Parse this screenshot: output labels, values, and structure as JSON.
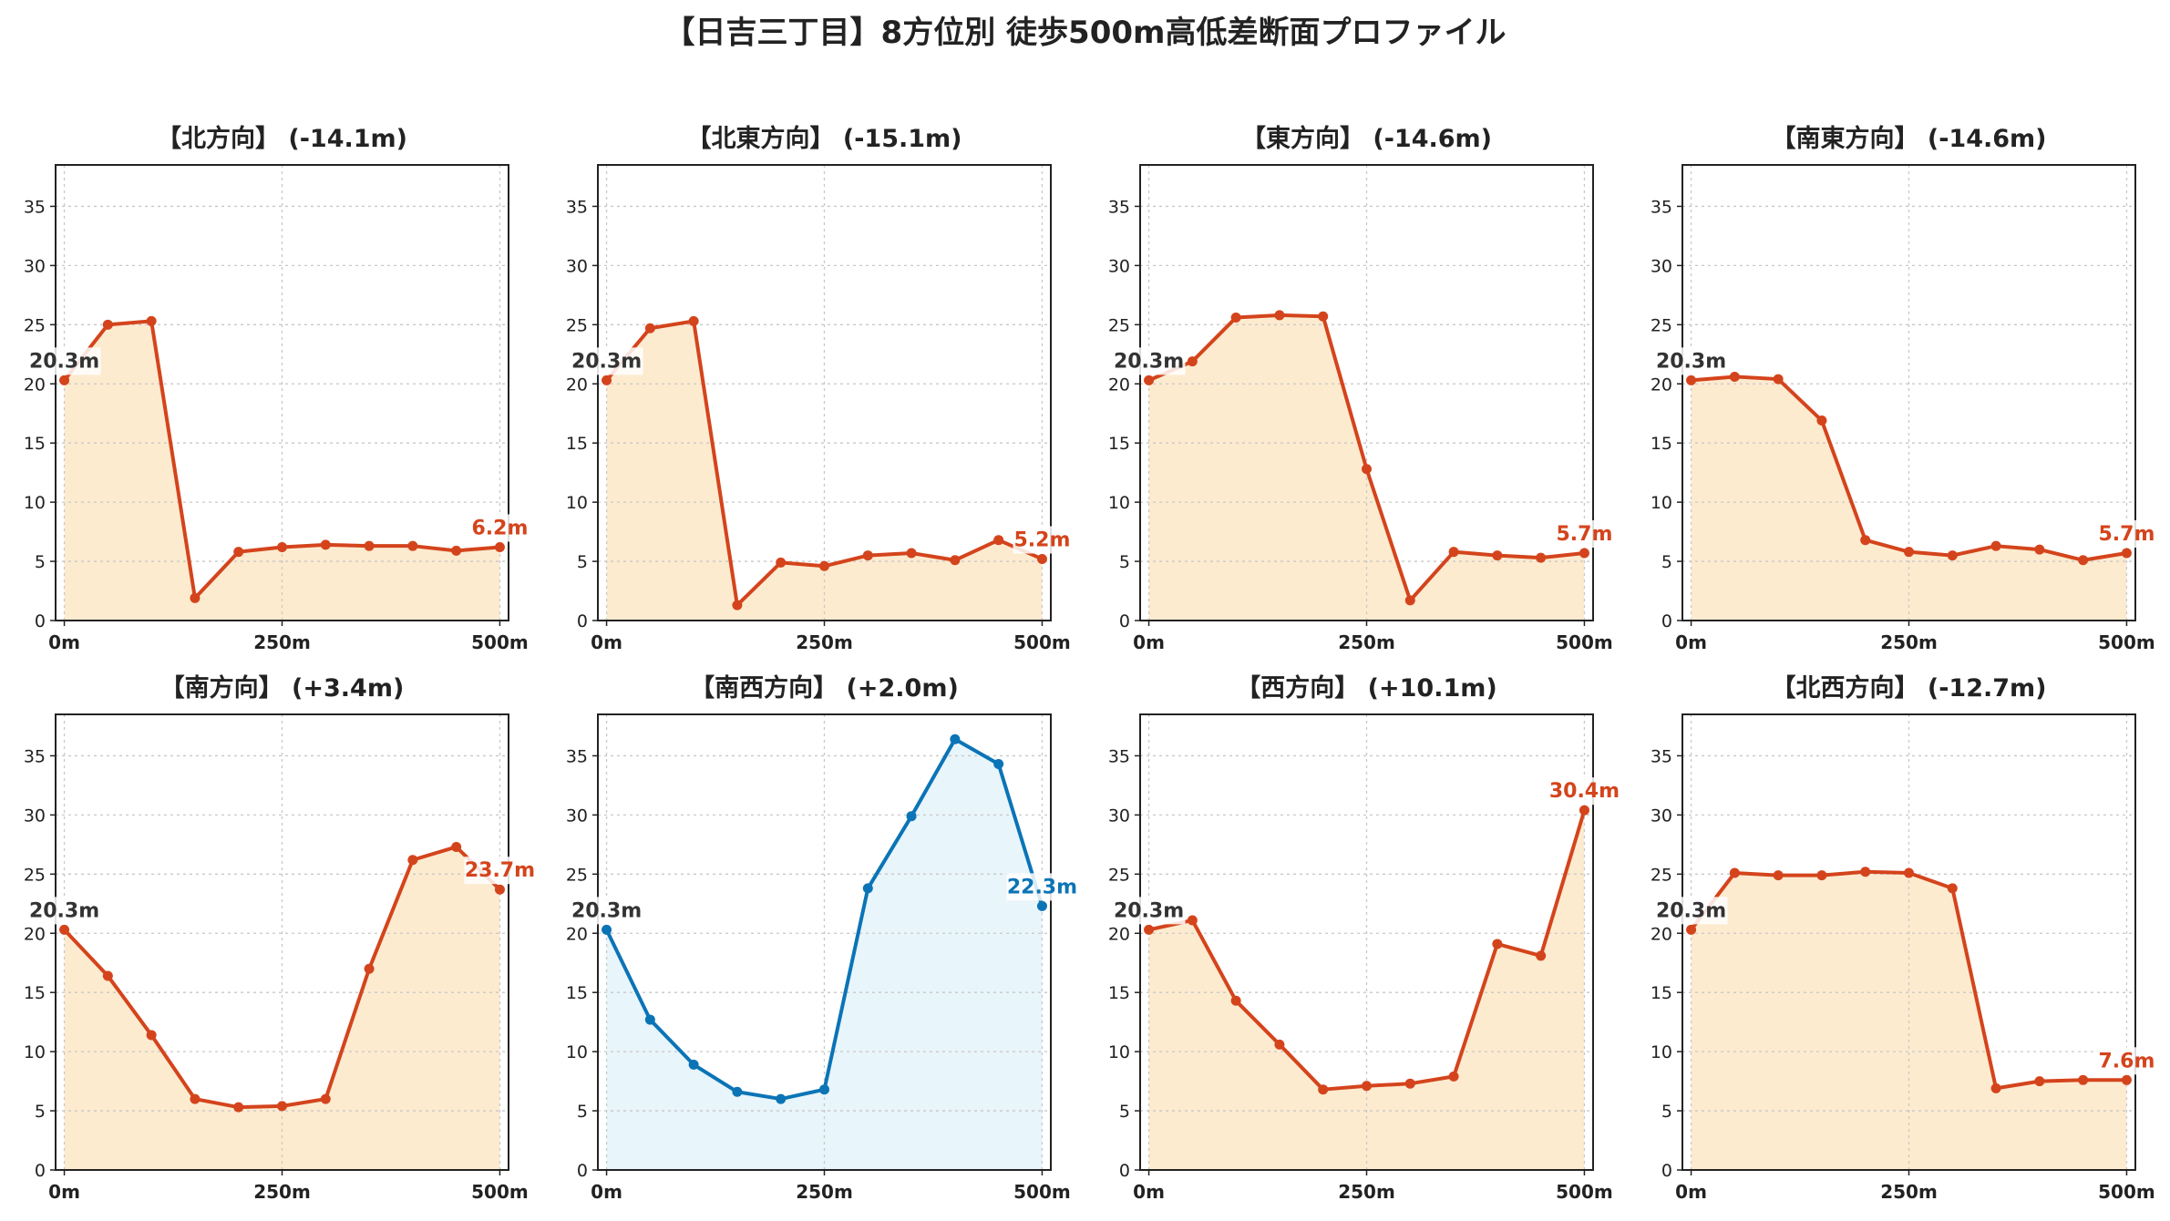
{
  "title": "【日吉三丁目】8方位別 徒歩500m高低差断面プロファイル",
  "colors": {
    "down_line": "#d4441c",
    "down_fill": "#fdebd0",
    "up_line": "#0b74b6",
    "up_fill": "#e8f5fb",
    "start_label": "#333333",
    "grid": "#c8c8c8"
  },
  "chart_data": [
    {
      "type": "line",
      "title": "【北方向】 (-14.1m)",
      "x": [
        0,
        50,
        100,
        150,
        200,
        250,
        300,
        350,
        400,
        450,
        500
      ],
      "values": [
        20.3,
        25.0,
        25.3,
        1.9,
        5.8,
        6.2,
        6.4,
        6.3,
        6.3,
        5.9,
        6.2
      ],
      "start_label": "20.3m",
      "end_label": "6.2m",
      "xticks": [
        "0m",
        "250m",
        "500m"
      ],
      "yticks": [
        "0",
        "5",
        "10",
        "15",
        "20",
        "25",
        "30",
        "35"
      ],
      "ylim": [
        0,
        38.5
      ],
      "xlim": [
        -10,
        510
      ],
      "style": "down",
      "grid": true
    },
    {
      "type": "line",
      "title": "【北東方向】 (-15.1m)",
      "x": [
        0,
        50,
        100,
        150,
        200,
        250,
        300,
        350,
        400,
        450,
        500
      ],
      "values": [
        20.3,
        24.7,
        25.3,
        1.3,
        4.9,
        4.6,
        5.5,
        5.7,
        5.1,
        6.8,
        5.2
      ],
      "start_label": "20.3m",
      "end_label": "5.2m",
      "xticks": [
        "0m",
        "250m",
        "500m"
      ],
      "yticks": [
        "0",
        "5",
        "10",
        "15",
        "20",
        "25",
        "30",
        "35"
      ],
      "ylim": [
        0,
        38.5
      ],
      "xlim": [
        -10,
        510
      ],
      "style": "down",
      "grid": true
    },
    {
      "type": "line",
      "title": "【東方向】 (-14.6m)",
      "x": [
        0,
        50,
        100,
        150,
        200,
        250,
        300,
        350,
        400,
        450,
        500
      ],
      "values": [
        20.3,
        21.9,
        25.6,
        25.8,
        25.7,
        12.8,
        1.7,
        5.8,
        5.5,
        5.3,
        5.7
      ],
      "start_label": "20.3m",
      "end_label": "5.7m",
      "xticks": [
        "0m",
        "250m",
        "500m"
      ],
      "yticks": [
        "0",
        "5",
        "10",
        "15",
        "20",
        "25",
        "30",
        "35"
      ],
      "ylim": [
        0,
        38.5
      ],
      "xlim": [
        -10,
        510
      ],
      "style": "down",
      "grid": true
    },
    {
      "type": "line",
      "title": "【南東方向】 (-14.6m)",
      "x": [
        0,
        50,
        100,
        150,
        200,
        250,
        300,
        350,
        400,
        450,
        500
      ],
      "values": [
        20.3,
        20.6,
        20.4,
        16.9,
        6.8,
        5.8,
        5.5,
        6.3,
        6.0,
        5.1,
        5.7
      ],
      "start_label": "20.3m",
      "end_label": "5.7m",
      "xticks": [
        "0m",
        "250m",
        "500m"
      ],
      "yticks": [
        "0",
        "5",
        "10",
        "15",
        "20",
        "25",
        "30",
        "35"
      ],
      "ylim": [
        0,
        38.5
      ],
      "xlim": [
        -10,
        510
      ],
      "style": "down",
      "grid": true
    },
    {
      "type": "line",
      "title": "【南方向】 (+3.4m)",
      "x": [
        0,
        50,
        100,
        150,
        200,
        250,
        300,
        350,
        400,
        450,
        500
      ],
      "values": [
        20.3,
        16.4,
        11.4,
        6.0,
        5.3,
        5.4,
        6.0,
        17.0,
        26.2,
        27.3,
        23.7
      ],
      "start_label": "20.3m",
      "end_label": "23.7m",
      "xticks": [
        "0m",
        "250m",
        "500m"
      ],
      "yticks": [
        "0",
        "5",
        "10",
        "15",
        "20",
        "25",
        "30",
        "35"
      ],
      "ylim": [
        0,
        38.5
      ],
      "xlim": [
        -10,
        510
      ],
      "style": "down",
      "grid": true
    },
    {
      "type": "line",
      "title": "【南西方向】 (+2.0m)",
      "x": [
        0,
        50,
        100,
        150,
        200,
        250,
        300,
        350,
        400,
        450,
        500
      ],
      "values": [
        20.3,
        12.7,
        8.9,
        6.6,
        6.0,
        6.8,
        23.8,
        29.9,
        36.4,
        34.3,
        22.3
      ],
      "start_label": "20.3m",
      "end_label": "22.3m",
      "xticks": [
        "0m",
        "250m",
        "500m"
      ],
      "yticks": [
        "0",
        "5",
        "10",
        "15",
        "20",
        "25",
        "30",
        "35"
      ],
      "ylim": [
        0,
        38.5
      ],
      "xlim": [
        -10,
        510
      ],
      "style": "up",
      "grid": true
    },
    {
      "type": "line",
      "title": "【西方向】 (+10.1m)",
      "x": [
        0,
        50,
        100,
        150,
        200,
        250,
        300,
        350,
        400,
        450,
        500
      ],
      "values": [
        20.3,
        21.1,
        14.3,
        10.6,
        6.8,
        7.1,
        7.3,
        7.9,
        19.1,
        18.1,
        30.4
      ],
      "start_label": "20.3m",
      "end_label": "30.4m",
      "xticks": [
        "0m",
        "250m",
        "500m"
      ],
      "yticks": [
        "0",
        "5",
        "10",
        "15",
        "20",
        "25",
        "30",
        "35"
      ],
      "ylim": [
        0,
        38.5
      ],
      "xlim": [
        -10,
        510
      ],
      "style": "down",
      "grid": true
    },
    {
      "type": "line",
      "title": "【北西方向】 (-12.7m)",
      "x": [
        0,
        50,
        100,
        150,
        200,
        250,
        300,
        350,
        400,
        450,
        500
      ],
      "values": [
        20.3,
        25.1,
        24.9,
        24.9,
        25.2,
        25.1,
        23.8,
        6.9,
        7.5,
        7.6,
        7.6
      ],
      "start_label": "20.3m",
      "end_label": "7.6m",
      "xticks": [
        "0m",
        "250m",
        "500m"
      ],
      "yticks": [
        "0",
        "5",
        "10",
        "15",
        "20",
        "25",
        "30",
        "35"
      ],
      "ylim": [
        0,
        38.5
      ],
      "xlim": [
        -10,
        510
      ],
      "style": "down",
      "grid": true
    }
  ]
}
